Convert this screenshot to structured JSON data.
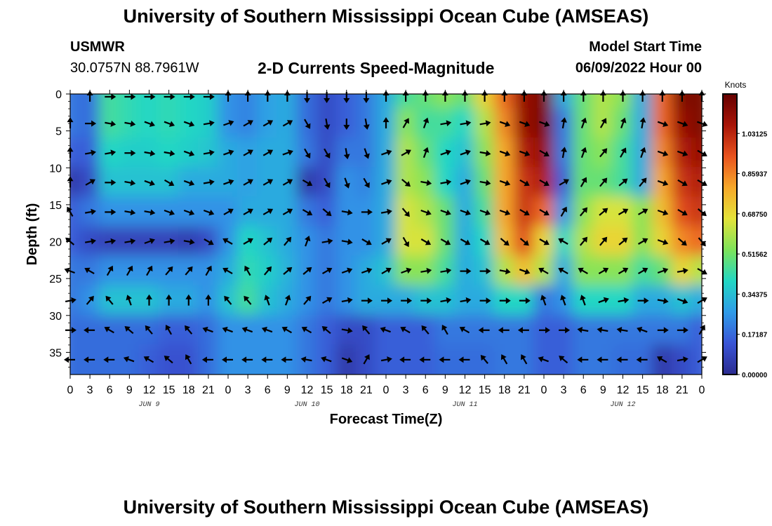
{
  "page": {
    "title": "University of Southern Mississippi Ocean Cube (AMSEAS)",
    "footer_title": "University of Southern Mississippi Ocean Cube (AMSEAS)",
    "station": "USMWR",
    "coords": "30.0757N  88.7961W",
    "chart_title": "2-D Currents Speed-Magnitude",
    "start_label": "Model Start Time",
    "start_value": "06/09/2022 Hour 00"
  },
  "chart_data": {
    "type": "heatmap",
    "title": "2-D Currents Speed-Magnitude",
    "xlabel": "Forecast Time(Z)",
    "ylabel": "Depth (ft)",
    "x_tick_labels": [
      "0",
      "3",
      "6",
      "9",
      "12",
      "15",
      "18",
      "21",
      "0",
      "3",
      "6",
      "9",
      "12",
      "15",
      "18",
      "21",
      "0",
      "3",
      "6",
      "9",
      "12",
      "15",
      "18",
      "21",
      "0",
      "3",
      "6",
      "9",
      "12",
      "15",
      "18",
      "21",
      "0"
    ],
    "day_labels": [
      "JUN 9",
      "JUN 10",
      "JUN 11",
      "JUN 12"
    ],
    "y_ticks": [
      0,
      5,
      10,
      15,
      20,
      25,
      30,
      35
    ],
    "ylim": [
      38,
      0
    ],
    "xlim": [
      0,
      96
    ],
    "colorbar_label": "Knots",
    "colorbar_ticks": [
      "0.00000",
      "0.17187",
      "0.34375",
      "0.51562",
      "0.68750",
      "0.85937",
      "1.03125"
    ],
    "colorbar_range": [
      0,
      1.2
    ],
    "grid": false,
    "colormap": [
      "#2b2b90",
      "#3a55d6",
      "#2f9be8",
      "#22d7c4",
      "#7de35a",
      "#e4e33a",
      "#f7a82a",
      "#e8531f",
      "#a81508",
      "#650000"
    ],
    "depth_levels": [
      0,
      4,
      8,
      12,
      16,
      20,
      24,
      28,
      32,
      36
    ],
    "description_note": "speed values in knots, rows by depth level, columns every 3 forecast hours",
    "speed_knots": [
      [
        0.2,
        0.18,
        0.45,
        0.42,
        0.4,
        0.42,
        0.4,
        0.38,
        0.25,
        0.22,
        0.28,
        0.3,
        0.18,
        0.1,
        0.15,
        0.2,
        0.3,
        0.45,
        0.5,
        0.55,
        0.5,
        0.7,
        0.9,
        1.1,
        1.15,
        0.3,
        0.5,
        0.6,
        0.55,
        0.3,
        0.9,
        1.15,
        1.15
      ],
      [
        0.2,
        0.18,
        0.45,
        0.42,
        0.4,
        0.42,
        0.4,
        0.38,
        0.25,
        0.22,
        0.28,
        0.3,
        0.18,
        0.1,
        0.15,
        0.2,
        0.3,
        0.55,
        0.45,
        0.45,
        0.4,
        0.6,
        0.85,
        1.1,
        1.15,
        0.2,
        0.5,
        0.6,
        0.5,
        0.3,
        0.9,
        1.1,
        1.15
      ],
      [
        0.15,
        0.15,
        0.4,
        0.38,
        0.38,
        0.4,
        0.38,
        0.36,
        0.3,
        0.28,
        0.3,
        0.3,
        0.2,
        0.1,
        0.2,
        0.2,
        0.3,
        0.6,
        0.5,
        0.4,
        0.35,
        0.55,
        0.8,
        1.05,
        1.1,
        0.2,
        0.5,
        0.55,
        0.45,
        0.3,
        0.85,
        1.05,
        1.1
      ],
      [
        0.05,
        0.1,
        0.35,
        0.35,
        0.35,
        0.35,
        0.3,
        0.3,
        0.3,
        0.28,
        0.3,
        0.3,
        0.05,
        0.1,
        0.25,
        0.22,
        0.3,
        0.6,
        0.55,
        0.4,
        0.3,
        0.5,
        0.8,
        1.0,
        1.05,
        0.15,
        0.5,
        0.5,
        0.45,
        0.3,
        0.8,
        1.0,
        1.05
      ],
      [
        0.15,
        0.2,
        0.25,
        0.25,
        0.25,
        0.25,
        0.25,
        0.25,
        0.25,
        0.3,
        0.3,
        0.3,
        0.2,
        0.15,
        0.25,
        0.25,
        0.3,
        0.65,
        0.6,
        0.5,
        0.3,
        0.45,
        0.8,
        1.0,
        0.9,
        0.25,
        0.55,
        0.65,
        0.65,
        0.55,
        0.75,
        0.95,
        1.0
      ],
      [
        0.15,
        0.1,
        0.08,
        0.08,
        0.08,
        0.08,
        0.06,
        0.1,
        0.25,
        0.4,
        0.35,
        0.3,
        0.25,
        0.2,
        0.25,
        0.25,
        0.3,
        0.65,
        0.65,
        0.5,
        0.3,
        0.4,
        0.75,
        0.95,
        0.7,
        0.4,
        0.6,
        0.7,
        0.7,
        0.55,
        0.7,
        0.85,
        0.9
      ],
      [
        0.2,
        0.2,
        0.25,
        0.25,
        0.25,
        0.25,
        0.25,
        0.25,
        0.3,
        0.42,
        0.38,
        0.32,
        0.25,
        0.2,
        0.25,
        0.3,
        0.35,
        0.55,
        0.55,
        0.45,
        0.3,
        0.35,
        0.6,
        0.75,
        0.6,
        0.3,
        0.55,
        0.55,
        0.55,
        0.45,
        0.5,
        0.7,
        0.6
      ],
      [
        0.2,
        0.25,
        0.35,
        0.35,
        0.35,
        0.3,
        0.3,
        0.25,
        0.35,
        0.45,
        0.35,
        0.3,
        0.25,
        0.2,
        0.25,
        0.3,
        0.3,
        0.3,
        0.35,
        0.35,
        0.3,
        0.3,
        0.4,
        0.4,
        0.2,
        0.25,
        0.4,
        0.4,
        0.4,
        0.3,
        0.3,
        0.35,
        0.3
      ],
      [
        0.18,
        0.18,
        0.18,
        0.18,
        0.18,
        0.15,
        0.15,
        0.18,
        0.25,
        0.25,
        0.25,
        0.25,
        0.2,
        0.15,
        0.1,
        0.1,
        0.15,
        0.15,
        0.15,
        0.2,
        0.2,
        0.2,
        0.2,
        0.2,
        0.15,
        0.15,
        0.2,
        0.2,
        0.2,
        0.2,
        0.2,
        0.2,
        0.15
      ],
      [
        0.18,
        0.18,
        0.18,
        0.18,
        0.15,
        0.12,
        0.12,
        0.18,
        0.25,
        0.25,
        0.25,
        0.25,
        0.2,
        0.15,
        0.05,
        0.1,
        0.15,
        0.15,
        0.15,
        0.18,
        0.18,
        0.18,
        0.2,
        0.2,
        0.15,
        0.15,
        0.2,
        0.2,
        0.18,
        0.18,
        0.05,
        0.1,
        0.15
      ]
    ],
    "direction_deg": [
      [
        0,
        0,
        90,
        90,
        90,
        90,
        90,
        90,
        0,
        0,
        0,
        0,
        180,
        180,
        180,
        180,
        0,
        0,
        0,
        0,
        0,
        0,
        0,
        0,
        0,
        0,
        0,
        0,
        0,
        0,
        0,
        0,
        0
      ],
      [
        0,
        90,
        100,
        100,
        110,
        110,
        110,
        80,
        70,
        60,
        60,
        60,
        150,
        170,
        180,
        170,
        0,
        30,
        20,
        80,
        80,
        80,
        110,
        110,
        110,
        10,
        20,
        30,
        20,
        10,
        110,
        110,
        110
      ],
      [
        0,
        80,
        80,
        90,
        100,
        100,
        110,
        80,
        70,
        60,
        60,
        70,
        150,
        150,
        170,
        160,
        70,
        60,
        20,
        70,
        70,
        100,
        110,
        110,
        120,
        10,
        20,
        40,
        30,
        20,
        110,
        110,
        120
      ],
      [
        0,
        60,
        90,
        100,
        110,
        120,
        110,
        80,
        70,
        60,
        60,
        60,
        120,
        150,
        160,
        150,
        70,
        130,
        100,
        80,
        70,
        100,
        110,
        120,
        120,
        60,
        30,
        40,
        50,
        40,
        110,
        120,
        120
      ],
      [
        330,
        80,
        90,
        100,
        100,
        110,
        110,
        110,
        60,
        60,
        60,
        60,
        120,
        130,
        100,
        90,
        80,
        140,
        110,
        110,
        110,
        110,
        110,
        120,
        120,
        30,
        40,
        50,
        60,
        60,
        110,
        120,
        130
      ],
      [
        310,
        80,
        80,
        80,
        70,
        80,
        100,
        120,
        300,
        60,
        50,
        40,
        20,
        80,
        100,
        120,
        60,
        150,
        120,
        120,
        120,
        120,
        130,
        130,
        120,
        300,
        40,
        40,
        50,
        60,
        110,
        130,
        140
      ],
      [
        290,
        300,
        30,
        30,
        30,
        40,
        40,
        30,
        300,
        330,
        40,
        50,
        50,
        60,
        70,
        70,
        60,
        70,
        80,
        80,
        90,
        90,
        100,
        110,
        300,
        300,
        300,
        60,
        60,
        60,
        70,
        80,
        120
      ],
      [
        80,
        40,
        320,
        340,
        0,
        0,
        0,
        0,
        320,
        320,
        340,
        20,
        40,
        60,
        80,
        90,
        90,
        90,
        90,
        80,
        80,
        90,
        90,
        90,
        340,
        340,
        340,
        70,
        80,
        90,
        100,
        110,
        60
      ],
      [
        90,
        270,
        300,
        310,
        320,
        330,
        320,
        290,
        290,
        290,
        290,
        300,
        300,
        310,
        100,
        320,
        290,
        300,
        320,
        330,
        300,
        270,
        270,
        270,
        90,
        90,
        280,
        280,
        280,
        290,
        90,
        90,
        30
      ],
      [
        270,
        270,
        270,
        290,
        300,
        310,
        330,
        270,
        270,
        270,
        270,
        270,
        280,
        290,
        110,
        30,
        80,
        270,
        270,
        270,
        270,
        320,
        330,
        330,
        290,
        310,
        270,
        270,
        270,
        270,
        300,
        80,
        60
      ]
    ]
  }
}
